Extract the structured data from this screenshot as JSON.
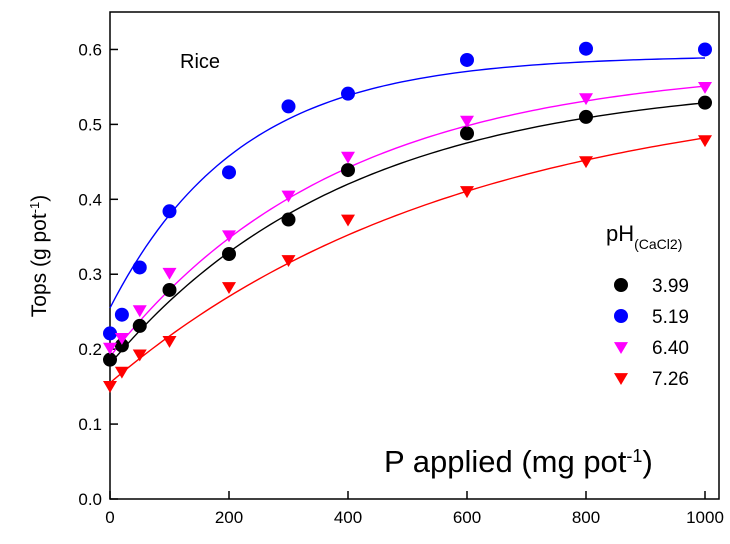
{
  "chart_data": {
    "type": "scatter",
    "annotation": "Rice",
    "ylabel": {
      "main": "Tops (g pot",
      "sup": "-1",
      "close": ")"
    },
    "xlabel": {
      "main": "P applied (mg pot",
      "sup": "-1",
      "close": ")"
    },
    "xlim": [
      0,
      1000
    ],
    "ylim": [
      0.0,
      0.65
    ],
    "xticks": [
      0,
      200,
      400,
      600,
      800,
      1000
    ],
    "yticks": [
      0.0,
      0.1,
      0.2,
      0.3,
      0.4,
      0.5,
      0.6
    ],
    "legend": {
      "title_main": "pH",
      "title_sub": "(CaCl2)",
      "placement": "right"
    },
    "grid": false,
    "series": [
      {
        "name": "3.99",
        "color": "#000000",
        "marker": "circle",
        "x": [
          0,
          20,
          50,
          100,
          200,
          300,
          400,
          600,
          800,
          1000
        ],
        "y": [
          0.186,
          0.205,
          0.231,
          0.279,
          0.327,
          0.373,
          0.439,
          0.488,
          0.51,
          0.529
        ],
        "fit": {
          "y0": 0.18,
          "a": 0.38,
          "k": 0.0025
        }
      },
      {
        "name": "5.19",
        "color": "#0000ff",
        "marker": "circle",
        "x": [
          0,
          20,
          50,
          100,
          200,
          300,
          400,
          600,
          800,
          1000
        ],
        "y": [
          0.221,
          0.246,
          0.309,
          0.384,
          0.436,
          0.524,
          0.541,
          0.586,
          0.601,
          0.6
        ],
        "fit": {
          "y0": 0.255,
          "a": 0.337,
          "k": 0.0046
        }
      },
      {
        "name": "6.40",
        "color": "#ff00ff",
        "marker": "triangle-down",
        "x": [
          0,
          20,
          50,
          100,
          200,
          300,
          400,
          600,
          800,
          1000
        ],
        "y": [
          0.202,
          0.215,
          0.252,
          0.302,
          0.352,
          0.405,
          0.457,
          0.505,
          0.535,
          0.55
        ],
        "fit": {
          "y0": 0.19,
          "a": 0.39,
          "k": 0.0026
        }
      },
      {
        "name": "7.26",
        "color": "#ff0000",
        "marker": "triangle-down",
        "x": [
          0,
          20,
          50,
          100,
          200,
          300,
          400,
          600,
          800,
          1000
        ],
        "y": [
          0.151,
          0.17,
          0.193,
          0.211,
          0.283,
          0.319,
          0.373,
          0.411,
          0.451,
          0.479
        ],
        "fit": {
          "y0": 0.155,
          "a": 0.4,
          "k": 0.0017
        }
      }
    ]
  }
}
